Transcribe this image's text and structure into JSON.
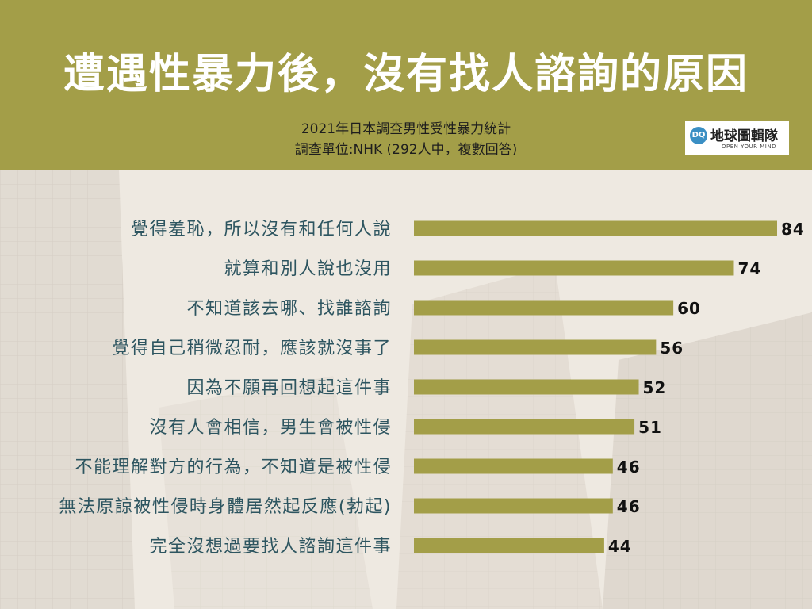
{
  "header": {
    "title": "遭遇性暴力後，沒有找人諮詢的原因",
    "subtitle_line1": "2021年日本調查男性受性暴力統計",
    "subtitle_line2": "調查單位:NHK (292人中，複數回答)"
  },
  "logo": {
    "mark": "DQ",
    "name": "地球圖輯隊",
    "tagline": "OPEN YOUR MIND"
  },
  "colors": {
    "accent": "#a39e48",
    "bar": "#a39e48",
    "label": "#2d5560",
    "value": "#111111"
  },
  "chart_data": {
    "type": "bar",
    "orientation": "horizontal",
    "categories": [
      "覺得羞恥，所以沒有和任何人說",
      "就算和別人說也沒用",
      "不知道該去哪、找誰諮詢",
      "覺得自己稍微忍耐，應該就沒事了",
      "因為不願再回想起這件事",
      "沒有人會相信，男生會被性侵",
      "不能理解對方的行為，不知道是被性侵",
      "無法原諒被性侵時身體居然起反應(勃起)",
      "完全沒想過要找人諮詢這件事"
    ],
    "values": [
      84,
      74,
      60,
      56,
      52,
      51,
      46,
      46,
      44
    ],
    "xlim": [
      0,
      84
    ],
    "grid": false,
    "legend": "none"
  }
}
